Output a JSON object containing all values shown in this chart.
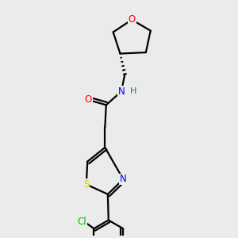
{
  "background_color": "#ebebeb",
  "atom_colors": {
    "C": "#000000",
    "N": "#0000ff",
    "O": "#ff0000",
    "S": "#cccc00",
    "Cl": "#00bb00",
    "H": "#008080"
  },
  "bond_color": "#000000",
  "bond_width": 1.6
}
